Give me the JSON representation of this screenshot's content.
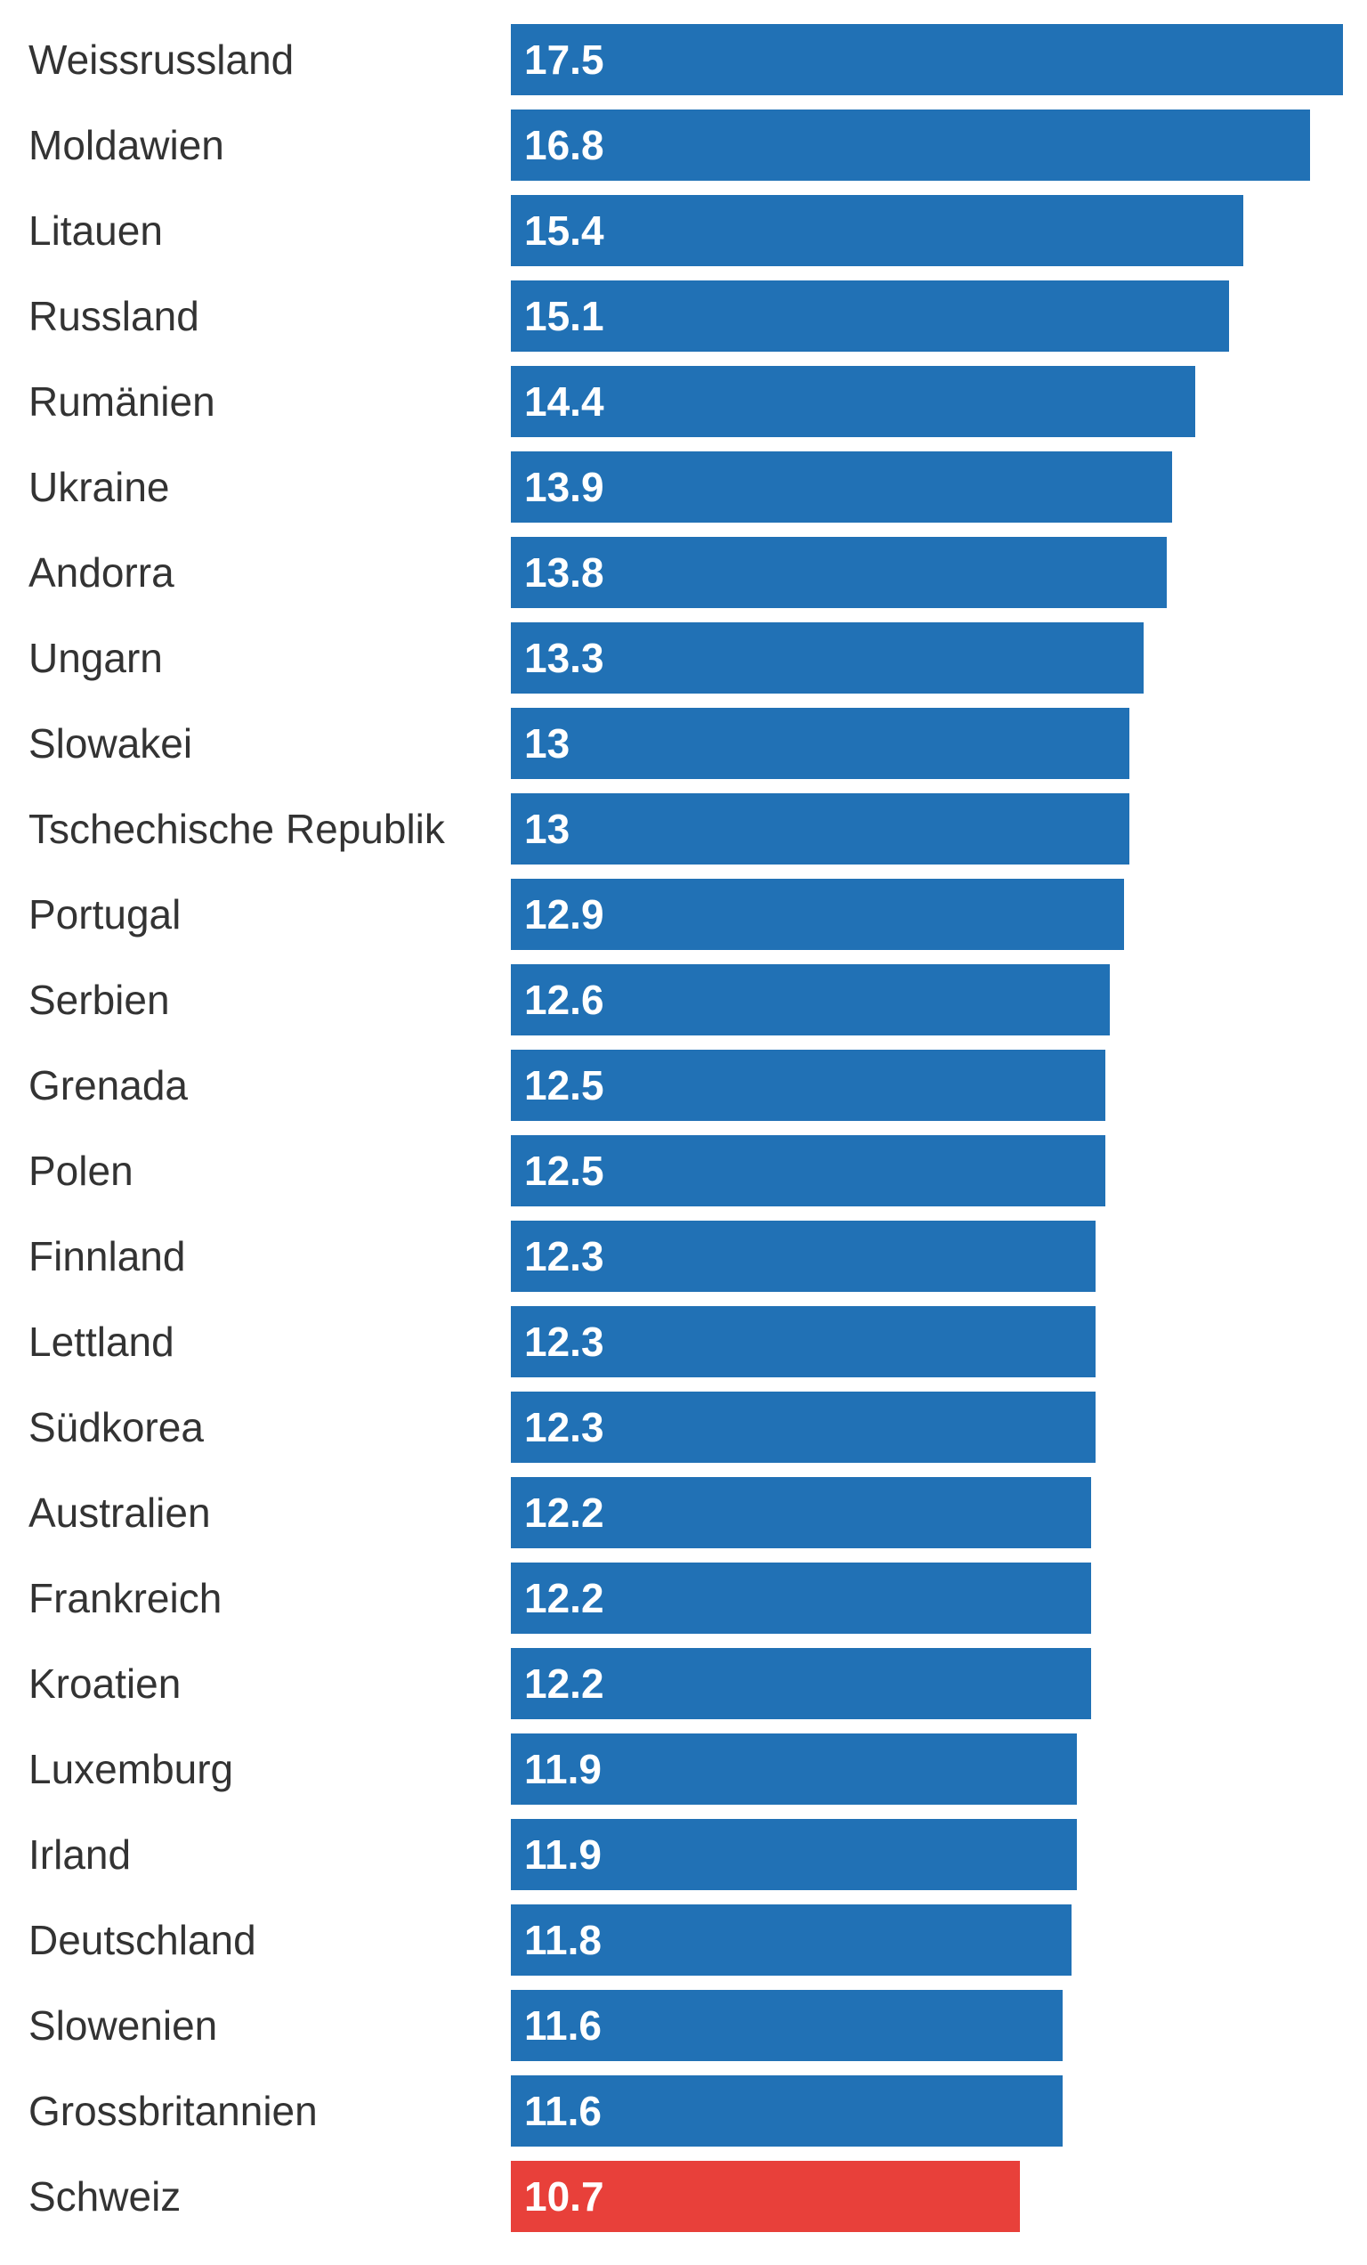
{
  "colors": {
    "default_bar": "#2171b5",
    "highlight_bar": "#e8403a",
    "label_text": "#333333",
    "value_text": "#ffffff"
  },
  "chart_data": {
    "type": "bar",
    "orientation": "horizontal",
    "title": "",
    "xlabel": "",
    "ylabel": "",
    "xlim": [
      0,
      17.5
    ],
    "grid": false,
    "legend": "none",
    "data_labels": "inside bar, left-aligned",
    "highlighted_category": "Schweiz",
    "categories": [
      "Weissrussland",
      "Moldawien",
      "Litauen",
      "Russland",
      "Rumänien",
      "Ukraine",
      "Andorra",
      "Ungarn",
      "Slowakei",
      "Tschechische Republik",
      "Portugal",
      "Serbien",
      "Grenada",
      "Polen",
      "Finnland",
      "Lettland",
      "Südkorea",
      "Australien",
      "Frankreich",
      "Kroatien",
      "Luxemburg",
      "Irland",
      "Deutschland",
      "Slowenien",
      "Grossbritannien",
      "Schweiz"
    ],
    "values": [
      17.5,
      16.8,
      15.4,
      15.1,
      14.4,
      13.9,
      13.8,
      13.3,
      13,
      13,
      12.9,
      12.6,
      12.5,
      12.5,
      12.3,
      12.3,
      12.3,
      12.2,
      12.2,
      12.2,
      11.9,
      11.9,
      11.8,
      11.6,
      11.6,
      10.7
    ],
    "value_labels": [
      "17.5",
      "16.8",
      "15.4",
      "15.1",
      "14.4",
      "13.9",
      "13.8",
      "13.3",
      "13",
      "13",
      "12.9",
      "12.6",
      "12.5",
      "12.5",
      "12.3",
      "12.3",
      "12.3",
      "12.2",
      "12.2",
      "12.2",
      "11.9",
      "11.9",
      "11.8",
      "11.6",
      "11.6",
      "10.7"
    ]
  }
}
